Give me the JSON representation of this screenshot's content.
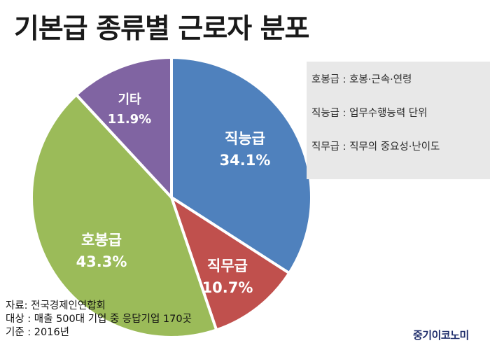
{
  "title": "기본급 종류별 근로자 분포",
  "chart_data": {
    "type": "pie",
    "slices": [
      {
        "label": "직능급",
        "value": 34.1,
        "display": "34.1%",
        "color": "#4f81bd"
      },
      {
        "label": "직무급",
        "value": 10.7,
        "display": "10.7%",
        "color": "#c0504d"
      },
      {
        "label": "호봉급",
        "value": 43.3,
        "display": "43.3%",
        "color": "#9bbb59"
      },
      {
        "label": "기타",
        "value": 11.9,
        "display": "11.9%",
        "color": "#8064a2"
      }
    ]
  },
  "legend": {
    "items": [
      "호봉급 : 호봉·근속·연령",
      "직능급 : 업무수행능력 단위",
      "직무급 : 직무의 중요성·난이도"
    ]
  },
  "notes": [
    "자료: 전국경제인연합회",
    "대상 : 매출 500대 기업 중 응답기업 170곳",
    "기준 : 2016년"
  ],
  "brand": "중기이코노미"
}
